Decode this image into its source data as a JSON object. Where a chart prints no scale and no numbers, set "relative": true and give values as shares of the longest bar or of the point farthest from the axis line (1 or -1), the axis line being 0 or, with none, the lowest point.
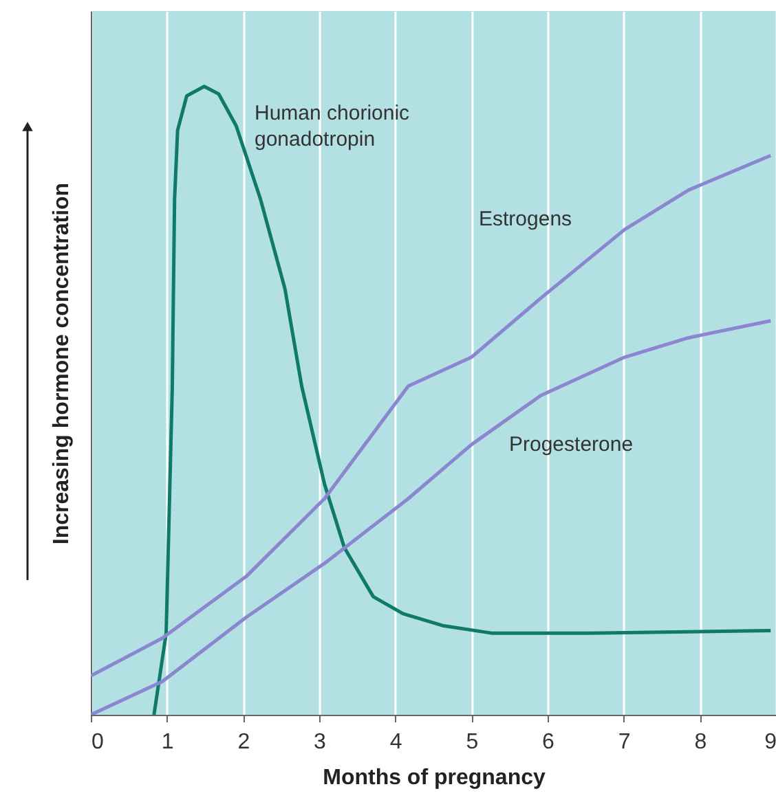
{
  "chart_data": {
    "type": "line",
    "xlabel": "Months of pregnancy",
    "ylabel": "Increasing hormone concentration",
    "relative": true,
    "xlim": [
      0,
      9
    ],
    "xticks": [
      0,
      1,
      2,
      3,
      4,
      5,
      6,
      7,
      8,
      9
    ],
    "grid": "x",
    "series": [
      {
        "name": "Human chorionic\ngonadotropin",
        "color": "#0f7a66",
        "x": [
          0.83,
          0.99,
          1.07,
          1.1,
          1.14,
          1.26,
          1.49,
          1.68,
          1.91,
          2.23,
          2.55,
          2.77,
          3.07,
          3.33,
          3.71,
          4.1,
          4.62,
          5.26,
          6.56,
          8.93
        ],
        "values": [
          0,
          0.13,
          0.52,
          0.82,
          0.93,
          0.985,
          1.0,
          0.988,
          0.937,
          0.82,
          0.678,
          0.523,
          0.367,
          0.266,
          0.188,
          0.161,
          0.142,
          0.13,
          0.13,
          0.134
        ]
      },
      {
        "name": "Estrogens",
        "color": "#8a86d0",
        "x": [
          0,
          0.94,
          2.04,
          3.07,
          4.17,
          5.0,
          5.91,
          7.01,
          7.85,
          8.93
        ],
        "values": [
          0.062,
          0.122,
          0.22,
          0.344,
          0.523,
          0.569,
          0.663,
          0.772,
          0.835,
          0.89
        ]
      },
      {
        "name": "Progesterone",
        "color": "#8a86d0",
        "x": [
          0,
          0.94,
          2.04,
          3.07,
          4.17,
          5.0,
          5.91,
          7.01,
          7.85,
          8.93
        ],
        "values": [
          0,
          0.053,
          0.155,
          0.241,
          0.344,
          0.43,
          0.508,
          0.569,
          0.6,
          0.627
        ]
      }
    ]
  }
}
